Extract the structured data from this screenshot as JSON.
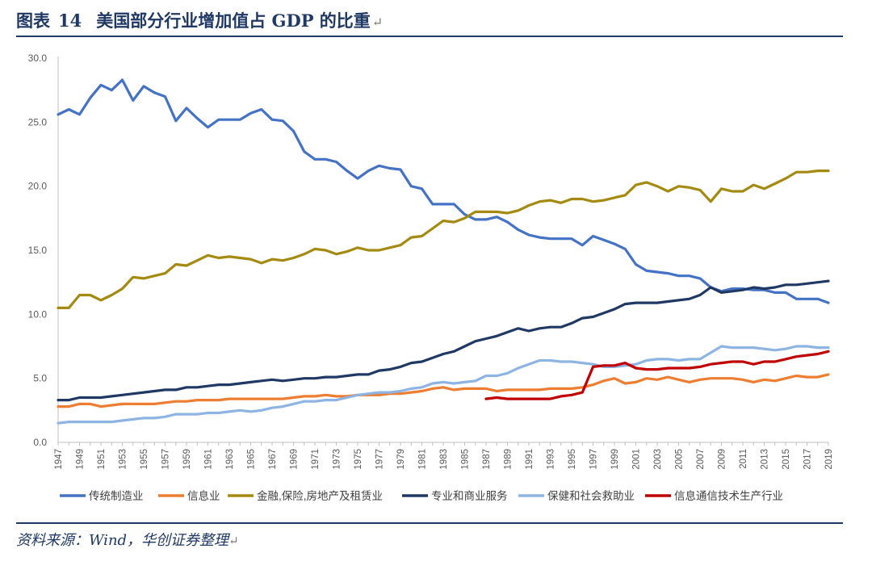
{
  "header": {
    "label": "图表",
    "number": "14",
    "title": "美国部分行业增加值占 GDP 的比重",
    "return_mark": "↵"
  },
  "footer": {
    "source": "资料来源：Wind，华创证券整理",
    "return_mark": "↵"
  },
  "chart_data": {
    "type": "line",
    "title": "美国部分行业增加值占 GDP 的比重",
    "xlabel": "",
    "ylabel": "",
    "ylim": [
      0,
      30
    ],
    "yticks": [
      "0.0",
      "5.0",
      "10.0",
      "15.0",
      "20.0",
      "25.0",
      "30.0"
    ],
    "x_start": 1947,
    "x_end": 2019,
    "xtick_labels": [
      "1947",
      "1949",
      "1951",
      "1953",
      "1955",
      "1957",
      "1959",
      "1961",
      "1963",
      "1965",
      "1967",
      "1969",
      "1971",
      "1973",
      "1975",
      "1977",
      "1979",
      "1981",
      "1983",
      "1985",
      "1987",
      "1989",
      "1991",
      "1993",
      "1995",
      "1997",
      "1999",
      "2001",
      "2003",
      "2005",
      "2007",
      "2009",
      "2011",
      "2013",
      "2015",
      "2017",
      "2019"
    ],
    "grid": false,
    "legend": "bottom",
    "series": [
      {
        "name": "传统制造业",
        "color": "#4472c4",
        "start_year": 1947,
        "values": [
          25.6,
          26.0,
          25.6,
          26.9,
          27.9,
          27.5,
          28.3,
          26.7,
          27.8,
          27.3,
          27.0,
          25.1,
          26.1,
          25.3,
          24.6,
          25.2,
          25.2,
          25.2,
          25.7,
          26.0,
          25.2,
          25.1,
          24.3,
          22.7,
          22.1,
          22.1,
          21.9,
          21.2,
          20.6,
          21.2,
          21.6,
          21.4,
          21.3,
          20.0,
          19.8,
          18.6,
          18.6,
          18.6,
          17.8,
          17.4,
          17.4,
          17.6,
          17.2,
          16.6,
          16.2,
          16.0,
          15.9,
          15.9,
          15.9,
          15.4,
          16.1,
          15.8,
          15.5,
          15.1,
          13.9,
          13.4,
          13.3,
          13.2,
          13.0,
          13.0,
          12.8,
          12.1,
          11.8,
          12.0,
          12.0,
          11.9,
          11.9,
          11.7,
          11.7,
          11.2,
          11.2,
          11.2,
          10.9
        ]
      },
      {
        "name": "信息业",
        "color": "#ed7d31",
        "start_year": 1947,
        "values": [
          2.8,
          2.8,
          3.0,
          3.0,
          2.8,
          2.9,
          3.0,
          3.0,
          3.0,
          3.0,
          3.1,
          3.2,
          3.2,
          3.3,
          3.3,
          3.3,
          3.4,
          3.4,
          3.4,
          3.4,
          3.4,
          3.4,
          3.5,
          3.6,
          3.6,
          3.7,
          3.6,
          3.6,
          3.7,
          3.7,
          3.7,
          3.8,
          3.8,
          3.9,
          4.0,
          4.2,
          4.3,
          4.1,
          4.2,
          4.2,
          4.2,
          4.0,
          4.1,
          4.1,
          4.1,
          4.1,
          4.2,
          4.2,
          4.2,
          4.3,
          4.5,
          4.8,
          5.0,
          4.6,
          4.7,
          5.0,
          4.9,
          5.1,
          4.9,
          4.7,
          4.9,
          5.0,
          5.0,
          5.0,
          4.9,
          4.7,
          4.9,
          4.8,
          5.0,
          5.2,
          5.1,
          5.1,
          5.3
        ]
      },
      {
        "name": "金融,保险,房地产及租赁业",
        "color": "#a58a11",
        "start_year": 1947,
        "values": [
          10.5,
          10.5,
          11.5,
          11.5,
          11.1,
          11.5,
          12.0,
          12.9,
          12.8,
          13.0,
          13.2,
          13.9,
          13.8,
          14.2,
          14.6,
          14.4,
          14.5,
          14.4,
          14.3,
          14.0,
          14.3,
          14.2,
          14.4,
          14.7,
          15.1,
          15.0,
          14.7,
          14.9,
          15.2,
          15.0,
          15.0,
          15.2,
          15.4,
          16.0,
          16.1,
          16.7,
          17.3,
          17.2,
          17.5,
          18.0,
          18.0,
          18.0,
          17.9,
          18.1,
          18.5,
          18.8,
          18.9,
          18.7,
          19.0,
          19.0,
          18.8,
          18.9,
          19.1,
          19.3,
          20.1,
          20.3,
          20.0,
          19.6,
          20.0,
          19.9,
          19.7,
          18.8,
          19.8,
          19.6,
          19.6,
          20.1,
          19.8,
          20.2,
          20.6,
          21.1,
          21.1,
          21.2,
          21.2
        ]
      },
      {
        "name": "专业和商业服务",
        "color": "#203864",
        "start_year": 1947,
        "values": [
          3.3,
          3.3,
          3.5,
          3.5,
          3.5,
          3.6,
          3.7,
          3.8,
          3.9,
          4.0,
          4.1,
          4.1,
          4.3,
          4.3,
          4.4,
          4.5,
          4.5,
          4.6,
          4.7,
          4.8,
          4.9,
          4.8,
          4.9,
          5.0,
          5.0,
          5.1,
          5.1,
          5.2,
          5.3,
          5.3,
          5.6,
          5.7,
          5.9,
          6.2,
          6.3,
          6.6,
          6.9,
          7.1,
          7.5,
          7.9,
          8.1,
          8.3,
          8.6,
          8.9,
          8.7,
          8.9,
          9.0,
          9.0,
          9.3,
          9.7,
          9.8,
          10.1,
          10.4,
          10.8,
          10.9,
          10.9,
          10.9,
          11.0,
          11.1,
          11.2,
          11.5,
          12.1,
          11.7,
          11.8,
          11.9,
          12.1,
          12.0,
          12.1,
          12.3,
          12.3,
          12.4,
          12.5,
          12.6
        ]
      },
      {
        "name": "保健和社会救助业",
        "color": "#8db4e2",
        "start_year": 1947,
        "values": [
          1.5,
          1.6,
          1.6,
          1.6,
          1.6,
          1.6,
          1.7,
          1.8,
          1.9,
          1.9,
          2.0,
          2.2,
          2.2,
          2.2,
          2.3,
          2.3,
          2.4,
          2.5,
          2.4,
          2.5,
          2.7,
          2.8,
          3.0,
          3.2,
          3.2,
          3.3,
          3.3,
          3.5,
          3.7,
          3.8,
          3.9,
          3.9,
          4.0,
          4.2,
          4.3,
          4.6,
          4.7,
          4.6,
          4.7,
          4.8,
          5.2,
          5.2,
          5.4,
          5.8,
          6.1,
          6.4,
          6.4,
          6.3,
          6.3,
          6.2,
          6.1,
          5.9,
          5.9,
          6.0,
          6.1,
          6.4,
          6.5,
          6.5,
          6.4,
          6.5,
          6.5,
          7.0,
          7.5,
          7.4,
          7.4,
          7.4,
          7.3,
          7.2,
          7.3,
          7.5,
          7.5,
          7.4,
          7.4
        ]
      },
      {
        "name": "信息通信技术生产行业",
        "color": "#c00000",
        "start_year": 1987,
        "values": [
          3.4,
          3.5,
          3.4,
          3.4,
          3.4,
          3.4,
          3.4,
          3.6,
          3.7,
          3.9,
          5.9,
          6.0,
          6.0,
          6.2,
          5.8,
          5.7,
          5.7,
          5.8,
          5.8,
          5.8,
          5.9,
          6.1,
          6.2,
          6.3,
          6.3,
          6.1,
          6.3,
          6.3,
          6.5,
          6.7,
          6.8,
          6.9,
          7.1
        ]
      }
    ]
  }
}
